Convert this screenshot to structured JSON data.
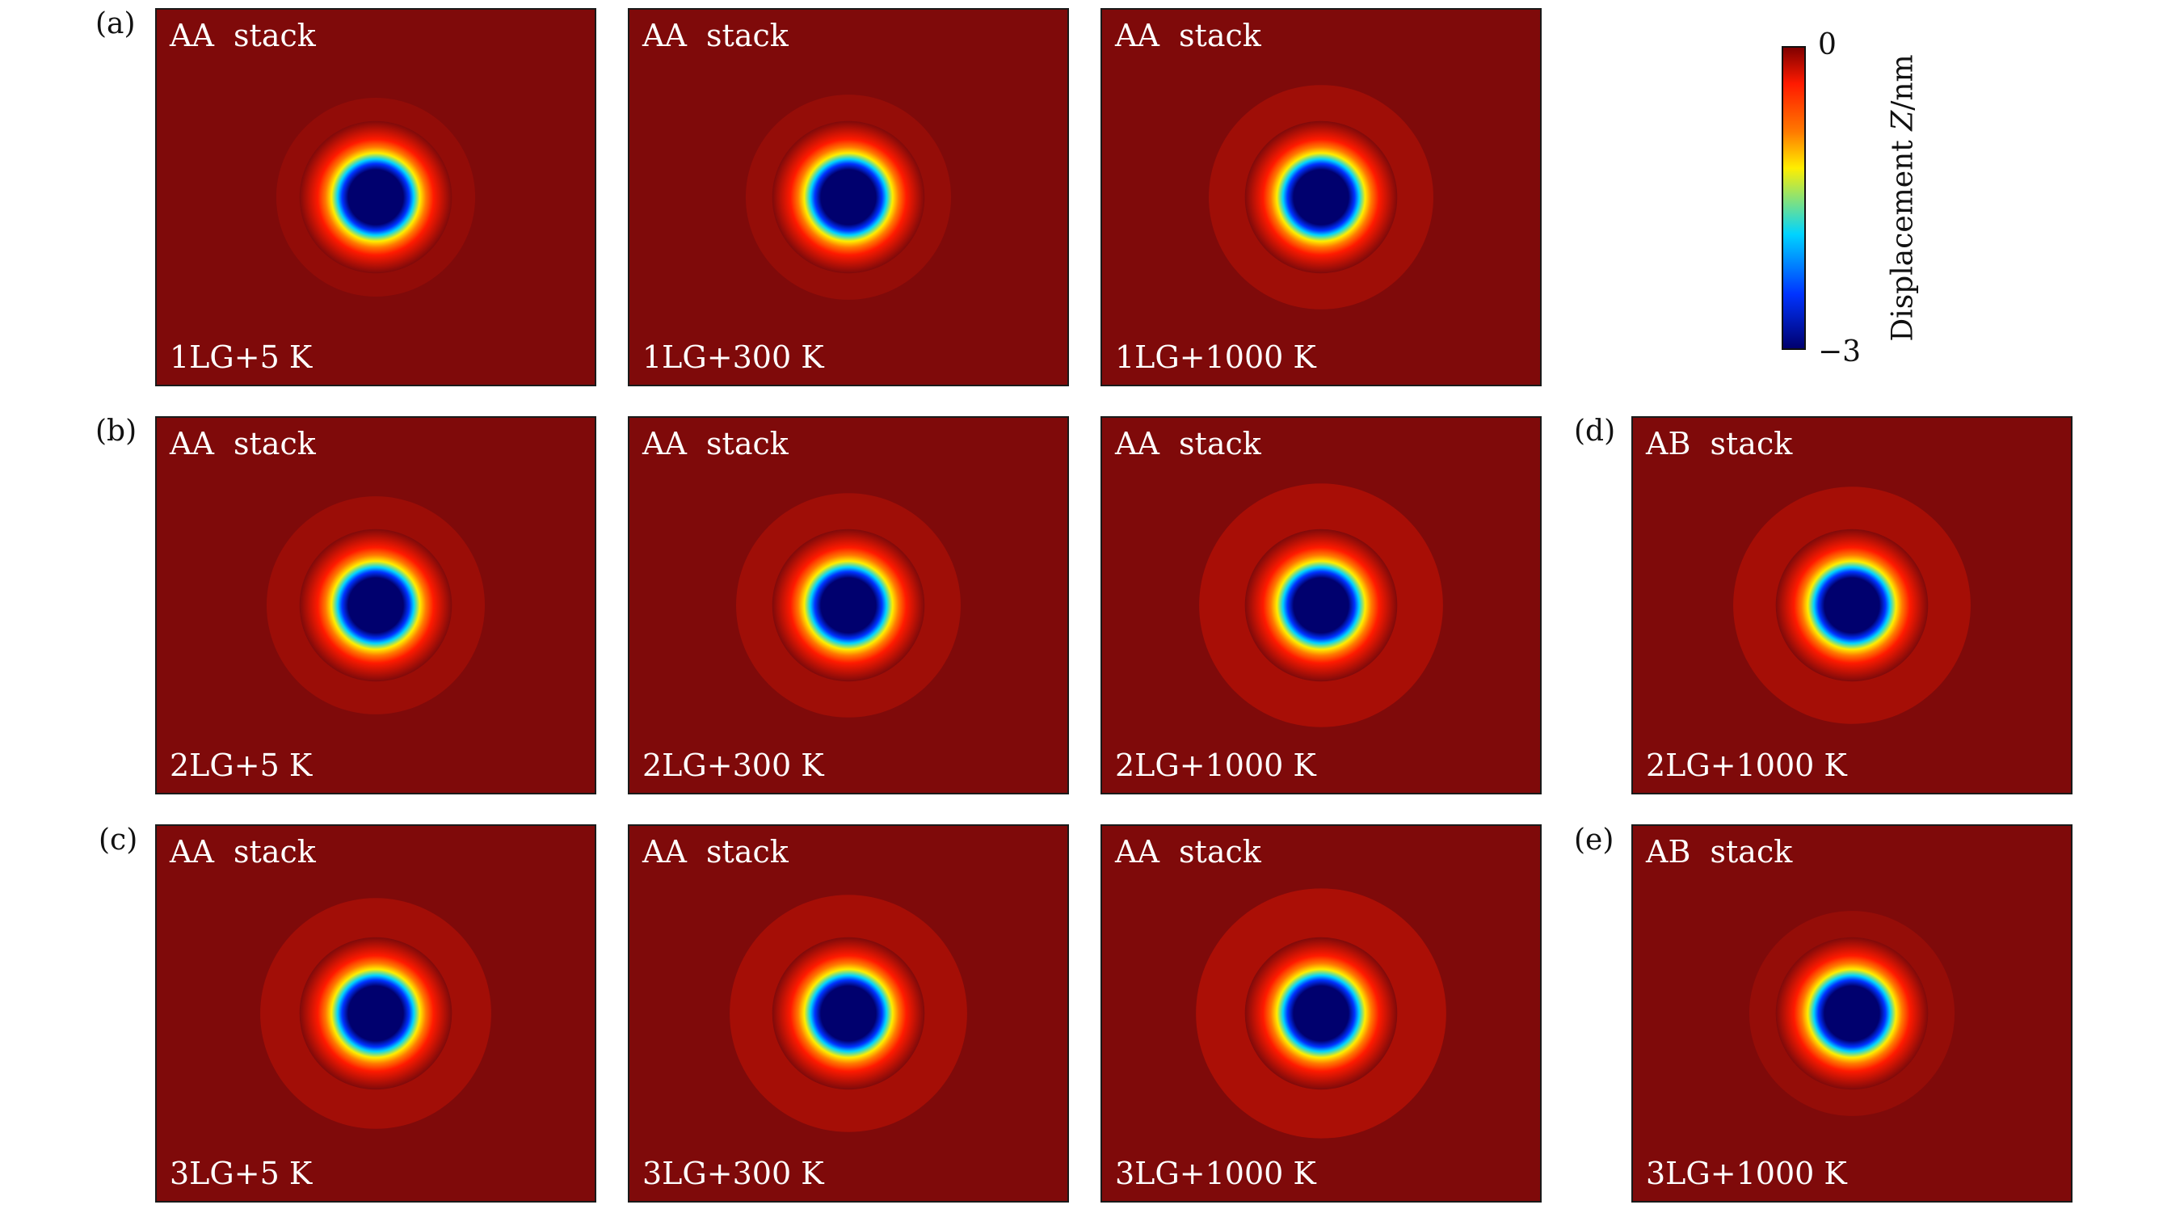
{
  "rows": [
    {
      "label": "(a)"
    },
    {
      "label": "(b)"
    },
    {
      "label": "(c)"
    },
    {
      "label": "(d)"
    },
    {
      "label": "(e)"
    }
  ],
  "panels": [
    {
      "stack": "AA  stack",
      "condition": "1LG+5 K"
    },
    {
      "stack": "AA  stack",
      "condition": "1LG+300 K"
    },
    {
      "stack": "AA  stack",
      "condition": "1LG+1000 K"
    },
    {
      "stack": "AA  stack",
      "condition": "2LG+5 K"
    },
    {
      "stack": "AA  stack",
      "condition": "2LG+300 K"
    },
    {
      "stack": "AA  stack",
      "condition": "2LG+1000 K"
    },
    {
      "stack": "AB  stack",
      "condition": "2LG+1000 K"
    },
    {
      "stack": "AA  stack",
      "condition": "3LG+5 K"
    },
    {
      "stack": "AA  stack",
      "condition": "3LG+300 K"
    },
    {
      "stack": "AA  stack",
      "condition": "3LG+1000 K"
    },
    {
      "stack": "AB  stack",
      "condition": "3LG+1000 K"
    }
  ],
  "colorbar": {
    "max_label": "0",
    "min_label": "−3",
    "axis_label_prefix": "Displacement ",
    "axis_label_var": "Z",
    "axis_label_unit": "/nm",
    "range": [
      -3,
      0
    ],
    "colormap": "jet",
    "colors": {
      "background": "#7f0a0a",
      "deep": "#00006e",
      "blue": "#0033ff",
      "cyan": "#00d4ff",
      "yellow": "#ffee00",
      "orange": "#ff7a00",
      "red": "#ff1a00",
      "dark_red": "#800000"
    }
  }
}
